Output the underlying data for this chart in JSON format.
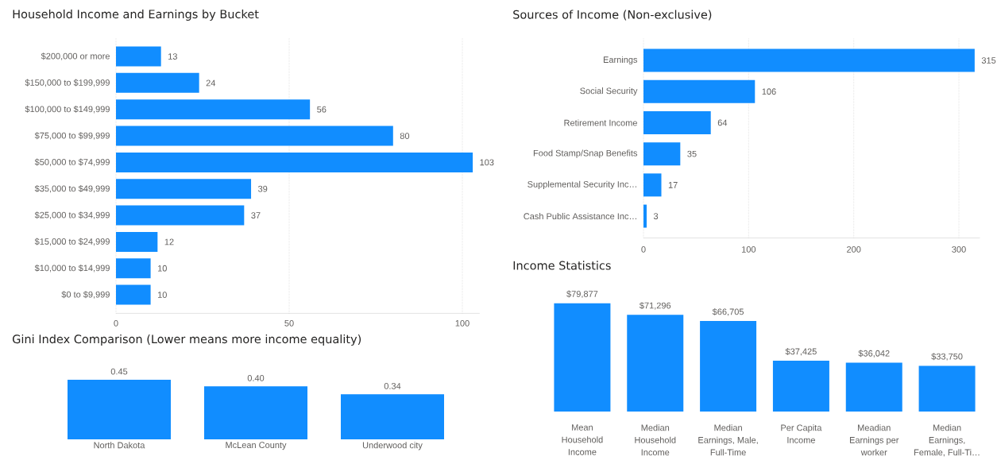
{
  "chart_data": [
    {
      "type": "bar",
      "orientation": "horizontal",
      "title": "Household Income and Earnings by Bucket",
      "categories": [
        "$200,000 or more",
        "$150,000 to $199,999",
        "$100,000 to $149,999",
        "$75,000 to $99,999",
        "$50,000 to $74,999",
        "$35,000 to $49,999",
        "$25,000 to $34,999",
        "$15,000 to $24,999",
        "$10,000 to $14,999",
        "$0 to $9,999"
      ],
      "values": [
        13,
        24,
        56,
        80,
        103,
        39,
        37,
        12,
        10,
        10
      ],
      "value_labels": [
        "13",
        "24",
        "56",
        "80",
        "103",
        "39",
        "37",
        "12",
        "10",
        "10"
      ],
      "color": "#118dff",
      "xlim": [
        0,
        105
      ],
      "xticks": [
        0,
        50,
        100
      ],
      "grid": "x"
    },
    {
      "type": "bar",
      "orientation": "horizontal",
      "title": "Sources of Income (Non-exclusive)",
      "categories": [
        "Earnings",
        "Social Security",
        "Retirement Income",
        "Food Stamp/Snap Benefits",
        "Supplemental Security Inc…",
        "Cash Public Assistance Inc…"
      ],
      "values": [
        315,
        106,
        64,
        35,
        17,
        3
      ],
      "value_labels": [
        "315",
        "106",
        "64",
        "35",
        "17",
        "3"
      ],
      "color": "#118dff",
      "xlim": [
        0,
        320
      ],
      "xticks": [
        0,
        100,
        200,
        300
      ],
      "grid": "x"
    },
    {
      "type": "bar",
      "title": "Gini Index Comparison (Lower means more income equality)",
      "categories": [
        "North Dakota",
        "McLean County",
        "Underwood city"
      ],
      "values": [
        0.45,
        0.4,
        0.34
      ],
      "value_labels": [
        "0.45",
        "0.40",
        "0.34"
      ],
      "color": "#118dff"
    },
    {
      "type": "bar",
      "title": "Income Statistics",
      "categories": [
        "Mean Household Income",
        "Median Household Income",
        "Median Earnings, Male, Full-Time",
        "Per Capita Income",
        "Meadian Earnings per worker",
        "Median Earnings, Female, Full-Ti…"
      ],
      "values": [
        79877,
        71296,
        66705,
        37425,
        36042,
        33750
      ],
      "value_labels": [
        "$79,877",
        "$71,296",
        "$66,705",
        "$37,425",
        "$36,042",
        "$33,750"
      ],
      "color": "#118dff"
    }
  ]
}
